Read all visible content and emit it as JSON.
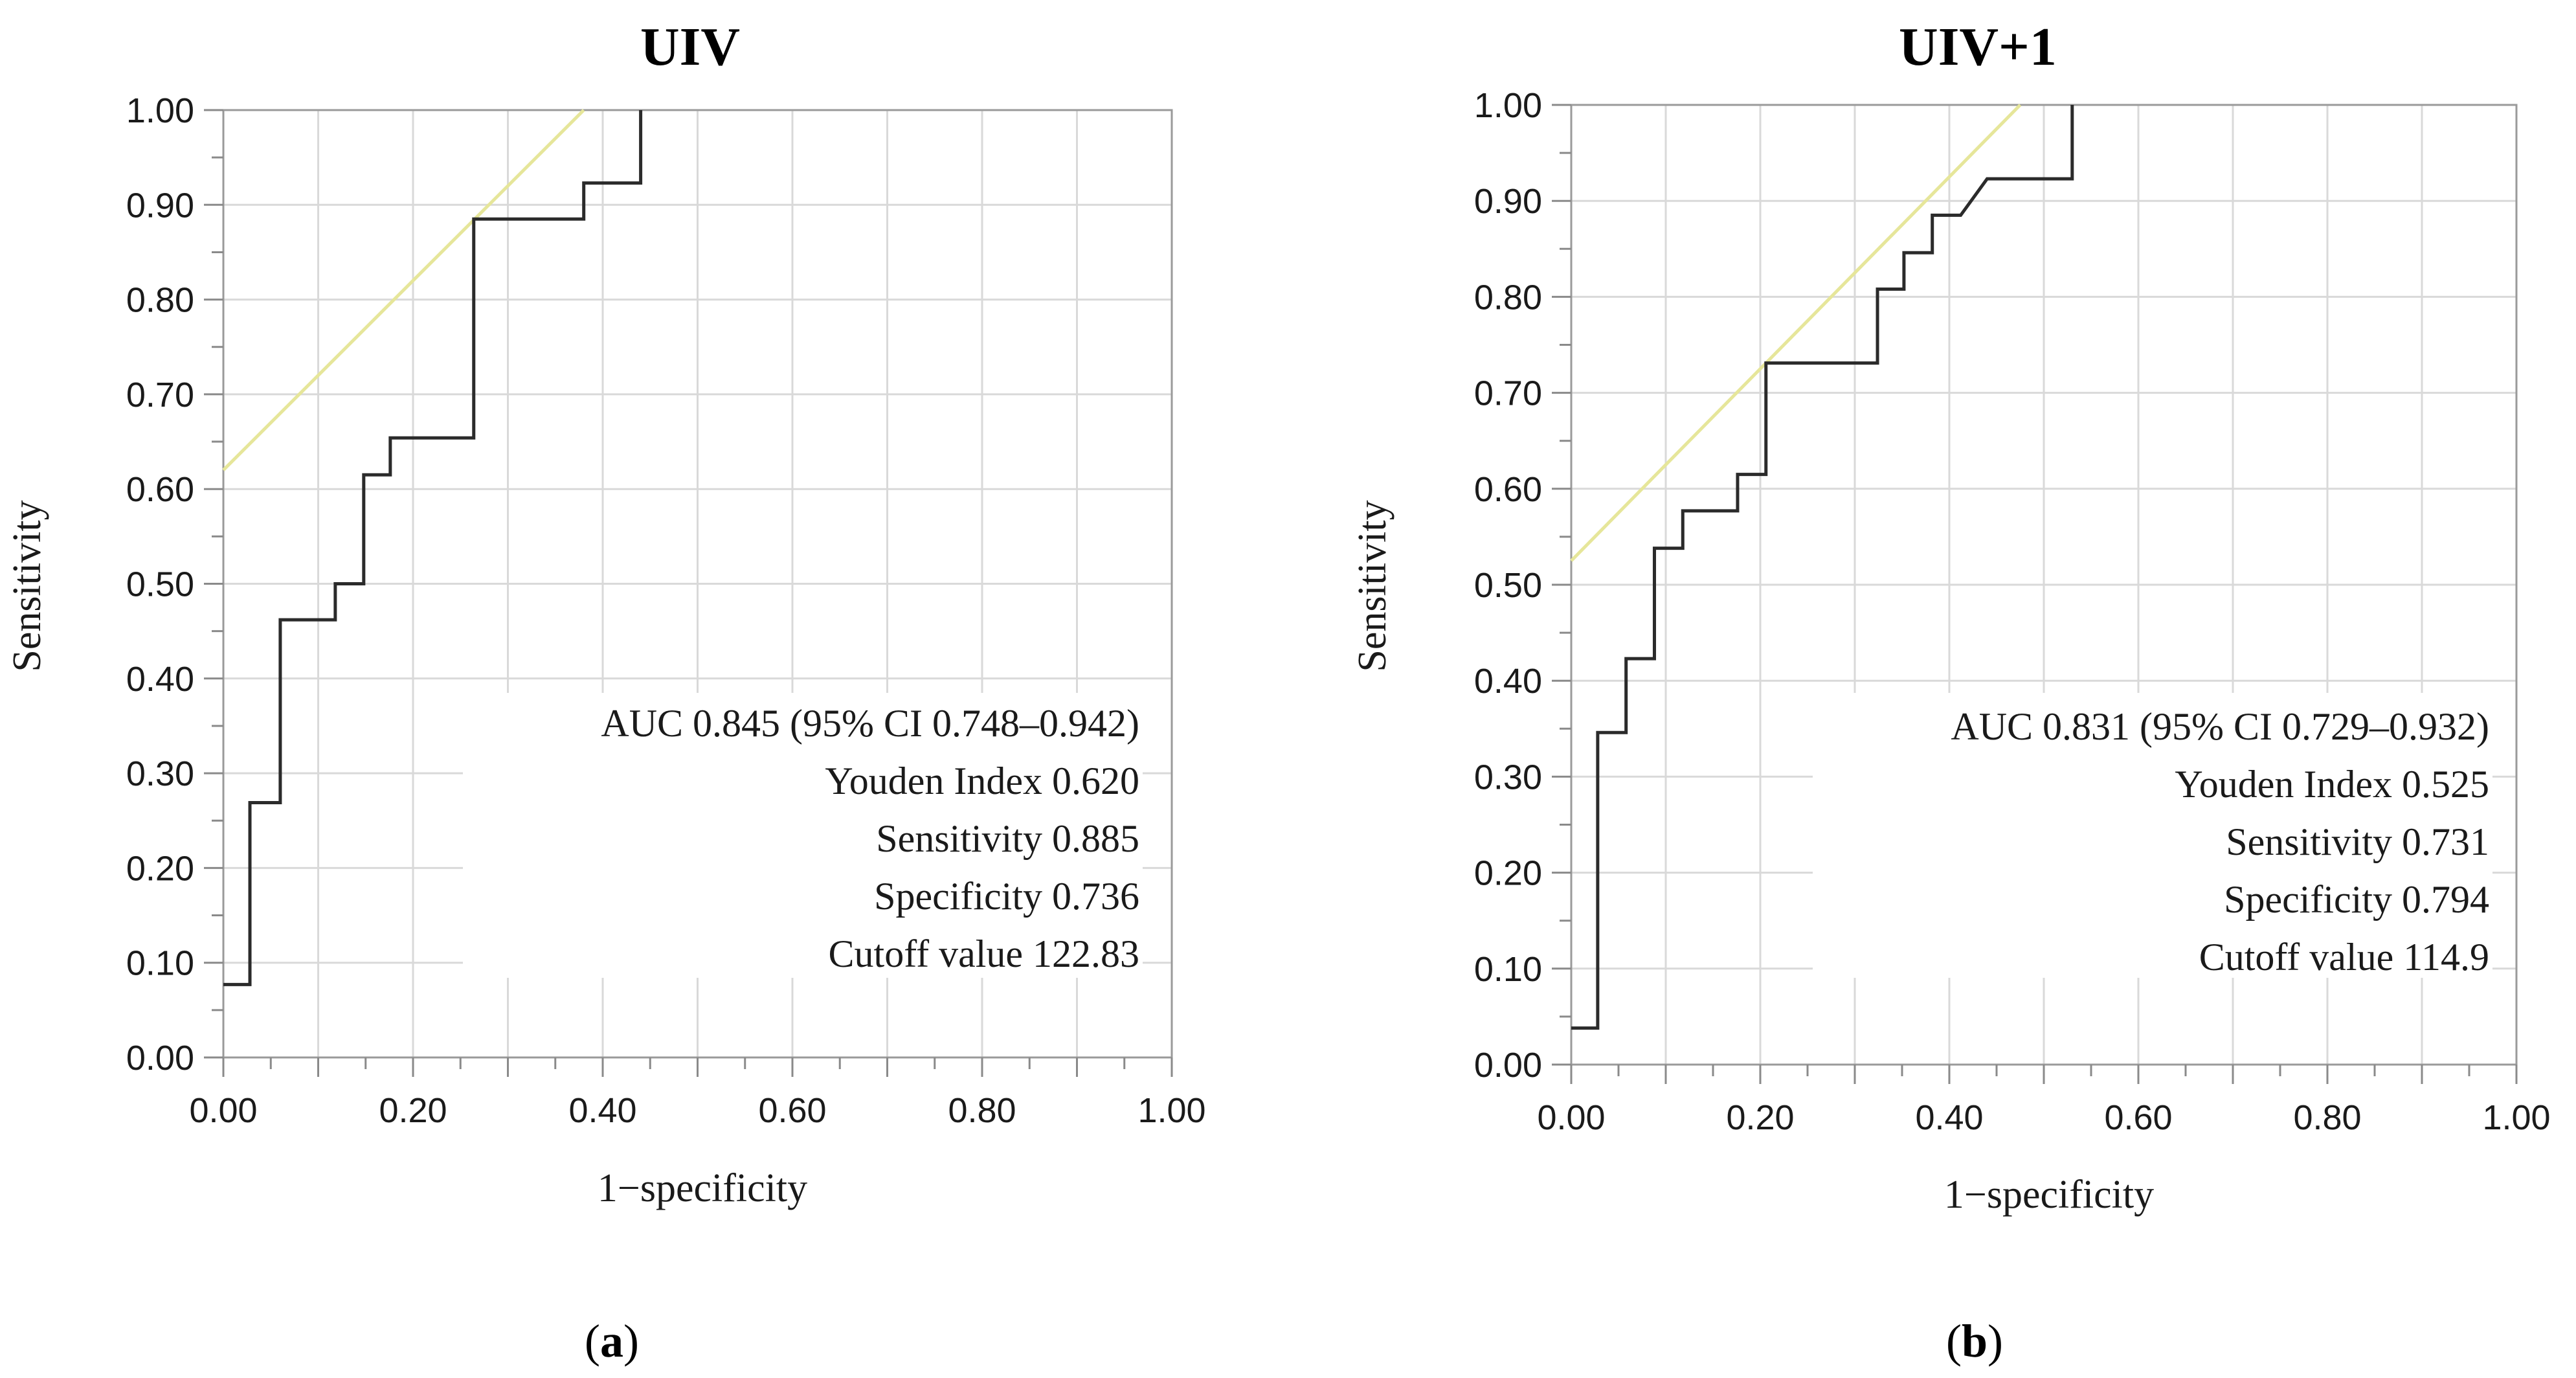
{
  "chart_data": [
    {
      "type": "line",
      "panel": "a",
      "title": "UIV",
      "xlabel": "1−specificity",
      "ylabel": "Sensitivity",
      "xlim": [
        0,
        1
      ],
      "ylim": [
        0,
        1
      ],
      "grid": true,
      "x_ticks": [
        "0.00",
        "0.20",
        "0.40",
        "0.60",
        "0.80",
        "1.00"
      ],
      "y_ticks": [
        "0.00",
        "0.10",
        "0.20",
        "0.30",
        "0.40",
        "0.50",
        "0.60",
        "0.70",
        "0.80",
        "0.90",
        "1.00"
      ],
      "series": [
        {
          "name": "ROC curve",
          "color": "#2b2b2b",
          "x": [
            0.0,
            0.028,
            0.028,
            0.06,
            0.06,
            0.118,
            0.118,
            0.148,
            0.148,
            0.176,
            0.176,
            0.264,
            0.264,
            0.38,
            0.38,
            0.44,
            0.44
          ],
          "y": [
            0.077,
            0.077,
            0.269,
            0.269,
            0.462,
            0.462,
            0.5,
            0.5,
            0.615,
            0.615,
            0.654,
            0.654,
            0.885,
            0.885,
            0.923,
            0.923,
            1.0
          ]
        },
        {
          "name": "Youden reference line",
          "color": "#e6e69a",
          "x": [
            0.0,
            0.38
          ],
          "y": [
            0.62,
            1.0
          ]
        }
      ],
      "stats": {
        "auc": "AUC 0.845 (95% CI 0.748–0.942)",
        "youden": "Youden Index 0.620",
        "sensitivity": "Sensitivity 0.885",
        "specificity": "Specificity 0.736",
        "cutoff": "Cutoff value 122.83"
      },
      "caption_open": "(",
      "caption_letter": "a",
      "caption_close": ")"
    },
    {
      "type": "line",
      "panel": "b",
      "title": "UIV+1",
      "xlabel": "1−specificity",
      "ylabel": "Sensitivity",
      "xlim": [
        0,
        1
      ],
      "ylim": [
        0,
        1
      ],
      "grid": true,
      "x_ticks": [
        "0.00",
        "0.20",
        "0.40",
        "0.60",
        "0.80",
        "1.00"
      ],
      "y_ticks": [
        "0.00",
        "0.10",
        "0.20",
        "0.30",
        "0.40",
        "0.50",
        "0.60",
        "0.70",
        "0.80",
        "0.90",
        "1.00"
      ],
      "series": [
        {
          "name": "ROC curve",
          "color": "#2b2b2b",
          "x": [
            0.0,
            0.028,
            0.028,
            0.058,
            0.058,
            0.088,
            0.088,
            0.118,
            0.118,
            0.176,
            0.176,
            0.206,
            0.206,
            0.324,
            0.324,
            0.352,
            0.352,
            0.382,
            0.382,
            0.412,
            0.44,
            0.53,
            0.53
          ],
          "y": [
            0.038,
            0.038,
            0.346,
            0.346,
            0.423,
            0.423,
            0.538,
            0.538,
            0.577,
            0.577,
            0.615,
            0.615,
            0.731,
            0.731,
            0.808,
            0.808,
            0.846,
            0.846,
            0.885,
            0.885,
            0.923,
            0.923,
            1.0
          ]
        },
        {
          "name": "Youden reference line",
          "color": "#e6e69a",
          "x": [
            0.0,
            0.475
          ],
          "y": [
            0.525,
            1.0
          ]
        }
      ],
      "stats": {
        "auc": "AUC 0.831 (95% CI 0.729–0.932)",
        "youden": "Youden Index 0.525",
        "sensitivity": "Sensitivity 0.731",
        "specificity": "Specificity 0.794",
        "cutoff": "Cutoff value 114.9"
      },
      "caption_open": "(",
      "caption_letter": "b",
      "caption_close": ")"
    }
  ]
}
